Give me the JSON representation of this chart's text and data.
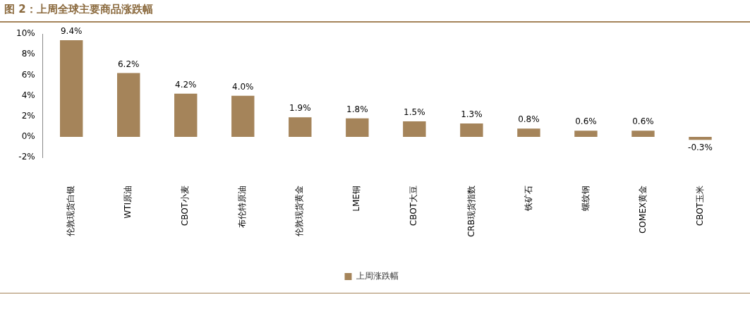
{
  "chart_data": {
    "type": "bar",
    "title": "图 2：上周全球主要商品涨跌幅",
    "categories": [
      "伦敦现货白银",
      "WTI原油",
      "CBOT小麦",
      "布伦特原油",
      "伦敦现货黄金",
      "LME铜",
      "CBOT大豆",
      "CRB现货指数",
      "铁矿石",
      "螺纹钢",
      "COMEX黄金",
      "CBOT玉米"
    ],
    "series": [
      {
        "name": "上周涨跌幅",
        "color": "#a5845a",
        "values": [
          9.4,
          6.2,
          4.2,
          4.0,
          1.9,
          1.8,
          1.5,
          1.3,
          0.8,
          0.6,
          0.6,
          -0.3
        ],
        "value_labels": [
          "9.4%",
          "6.2%",
          "4.2%",
          "4.0%",
          "1.9%",
          "1.8%",
          "1.5%",
          "1.3%",
          "0.8%",
          "0.6%",
          "0.6%",
          "-0.3%"
        ]
      }
    ],
    "ylim": [
      -2,
      10
    ],
    "yticks": [
      {
        "value": -2,
        "label": "-2%"
      },
      {
        "value": 0,
        "label": "0%"
      },
      {
        "value": 2,
        "label": "2%"
      },
      {
        "value": 4,
        "label": "4%"
      },
      {
        "value": 6,
        "label": "6%"
      },
      {
        "value": 8,
        "label": "8%"
      },
      {
        "value": 10,
        "label": "10%"
      }
    ],
    "legend": "bottom",
    "grid": false
  }
}
